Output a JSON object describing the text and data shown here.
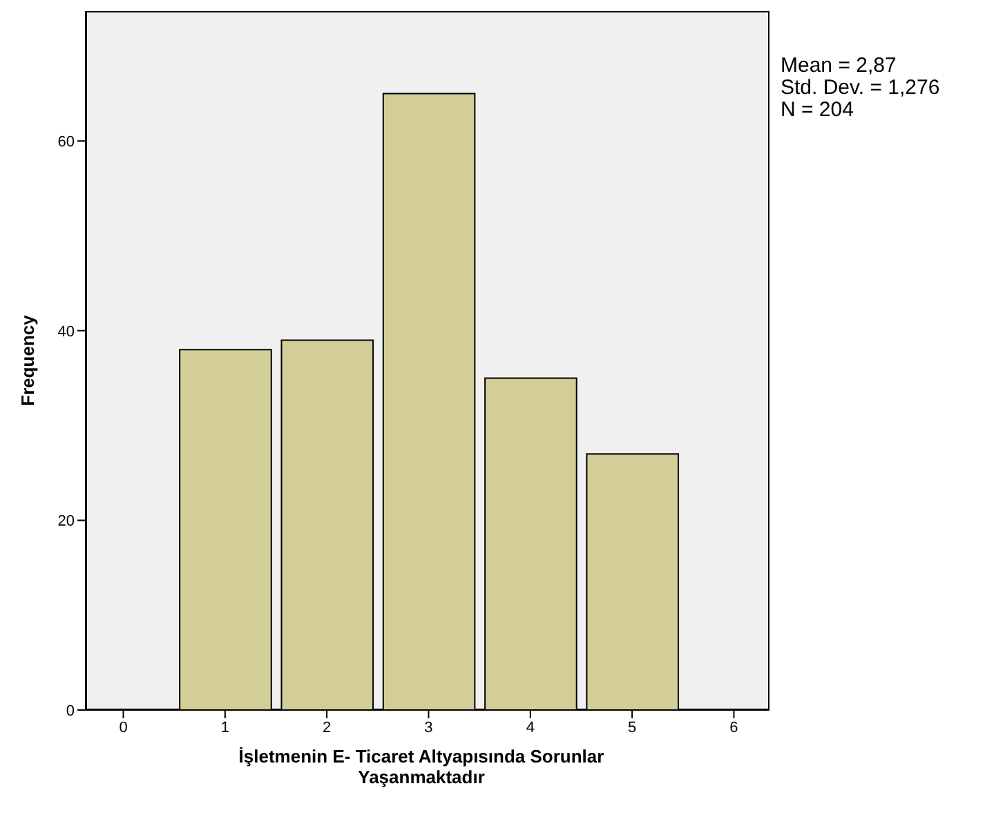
{
  "chart_data": {
    "type": "histogram",
    "bins": [
      0.5,
      1.5,
      2.5,
      3.5,
      4.5,
      5.5
    ],
    "values": [
      38,
      39,
      65,
      35,
      27
    ],
    "color": "#d3ce97",
    "xlabel": "İşletmenin E- Ticaret Altyapısında Sorunlar Yaşanmaktadır",
    "ylabel": "Frequency",
    "xlim": [
      -0.37,
      6.35
    ],
    "xticks": [
      0,
      1,
      2,
      3,
      4,
      5,
      6
    ],
    "ylim": [
      0,
      73.7
    ],
    "yticks": [
      0,
      20,
      40,
      60
    ],
    "annotations": [
      "Mean = 2,87",
      "Std. Dev. = 1,276",
      "N = 204"
    ]
  }
}
